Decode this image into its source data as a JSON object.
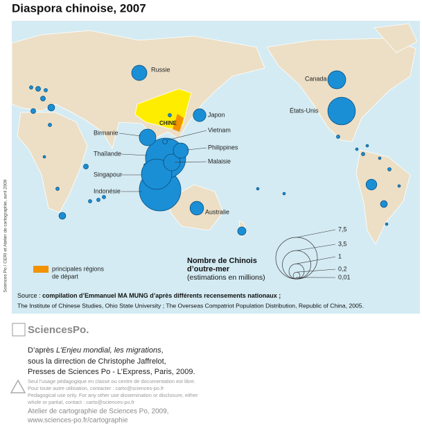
{
  "title": "Diaspora chinoise, 2007",
  "side_credit": "Sciences Po / CERI et Atelier de cartographie, avril 2009",
  "map": {
    "china_label": "CHINE",
    "bubbles": [
      {
        "label": "Indonésie",
        "value": 7.5
      },
      {
        "label": "Thaïlande",
        "value": 7
      },
      {
        "label": "Singapour",
        "value": 4
      },
      {
        "label": "Malaisie",
        "value": 1.2
      },
      {
        "label": "Philippines",
        "value": 1
      },
      {
        "label": "Birmanie",
        "value": 1.2
      },
      {
        "label": "Vietnam",
        "value": 0.1
      },
      {
        "label": "États-Unis",
        "value": 3.3
      },
      {
        "label": "Canada",
        "value": 1.4
      },
      {
        "label": "Russie",
        "value": 1
      },
      {
        "label": "Japon",
        "value": 0.7
      },
      {
        "label": "Australie",
        "value": 0.8
      }
    ],
    "other_values": [
      0.5,
      0.3,
      0.2,
      0.2,
      0.1,
      0.1,
      0.1,
      0.05,
      0.05,
      0.05,
      0.1,
      0.05,
      0.05,
      0.05,
      0.05,
      0.03,
      0.05,
      0.03,
      0.03,
      0.03,
      0.05,
      0.05,
      0.03,
      0.03,
      0.2,
      0.05,
      0.03,
      0.03,
      0.03,
      0.05
    ]
  },
  "legend": {
    "departure_label": [
      "principales régions",
      "de départ"
    ],
    "size_title": [
      "Nombre de Chinois",
      "d’outre-mer"
    ],
    "size_subtitle": "(estimations en millions)",
    "size_values": [
      {
        "value": 7.5,
        "label": "7,5"
      },
      {
        "value": 3.5,
        "label": "3,5"
      },
      1,
      {
        "value": 0.2,
        "label": "0,2"
      },
      {
        "value": 0.01,
        "label": "0,01"
      }
    ]
  },
  "source": {
    "prefix": "Source : ",
    "bold": "compilation d’Emmanuel MA MUNG d’après différents recensements nationaux ;",
    "line2": "The Institute of Chinese Studies, Ohio State University ; The Overseas Compatriot Population Distribution, Republic of China, 2005."
  },
  "footer": {
    "logo": "SciencesPo.",
    "ref_pre": "D’après ",
    "ref_italic": "L’Enjeu mondial, les migrations",
    "ref_post": ",",
    "ref_lines": [
      "sous la dirrection de Christophe Jaffrelot,",
      "Presses de Sciences Po - L’Express, Paris, 2009."
    ],
    "notice": [
      "Seul l’usage pédagogique en classe ou centre de documentation est libre.",
      "Pour toute autre utilisation, contacter : carto@sciences-po.fr",
      "Pedagogical use only. For any other use dissemination or disclosure, either",
      "whole or partial, contact : carto@sciences-po.fr"
    ],
    "credit": [
      "Atelier de cartographie de Sciences Po, 2009,",
      "www.sciences-po.fr/cartographie"
    ]
  }
}
